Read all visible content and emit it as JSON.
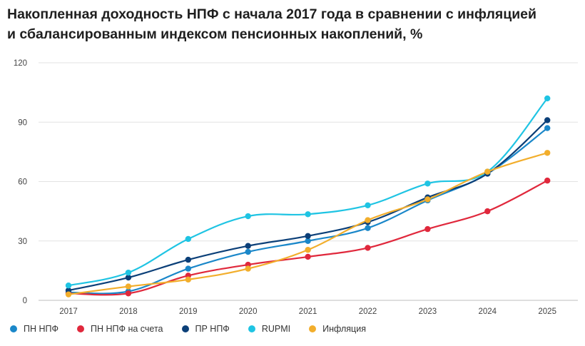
{
  "title": {
    "line1": "Накопленная доходность НПФ с начала 2017 года в сравнении с инфляцией",
    "line2": "и сбалансированным индексом пенсионных накоплений, %"
  },
  "chart_data": {
    "type": "line",
    "categories": [
      "2017",
      "2018",
      "2019",
      "2020",
      "2021",
      "2022",
      "2023",
      "2024",
      "2025"
    ],
    "ylim": [
      0,
      120
    ],
    "yticks": [
      "0",
      "30",
      "60",
      "90",
      "120"
    ],
    "grid": true,
    "legend_position": "bottom",
    "series": [
      {
        "name": "ПН НПФ",
        "color": "#1a87c9",
        "values": [
          4,
          4.5,
          16,
          24.5,
          30,
          36.5,
          50.5,
          64,
          87
        ]
      },
      {
        "name": "ПН НПФ на счета",
        "color": "#e0283c",
        "values": [
          3.5,
          3.5,
          12.5,
          18,
          22,
          26.5,
          36,
          45,
          60.5
        ]
      },
      {
        "name": "ПР НПФ",
        "color": "#0b3f78",
        "values": [
          5,
          11.5,
          20.5,
          27.5,
          32.5,
          39.5,
          52,
          64,
          91
        ]
      },
      {
        "name": "RUPMI",
        "color": "#1fc4e3",
        "values": [
          7.5,
          14,
          31,
          42.5,
          43.5,
          48,
          59,
          65,
          102
        ]
      },
      {
        "name": "Инфляция",
        "color": "#f2ae2c",
        "values": [
          3,
          7,
          10.5,
          16,
          25.5,
          40.5,
          51,
          65,
          74.5
        ]
      }
    ]
  }
}
